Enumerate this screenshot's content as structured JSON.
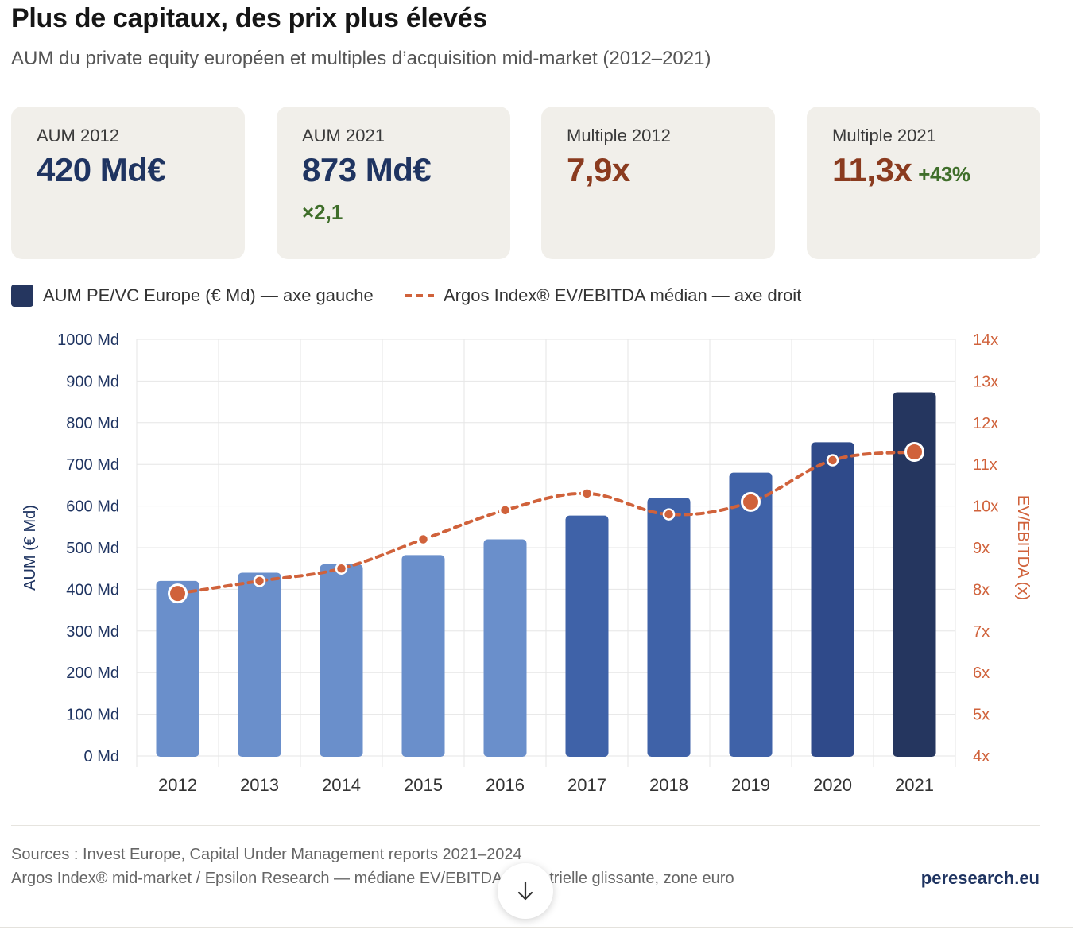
{
  "header": {
    "title": "Plus de capitaux, des prix plus élevés",
    "subtitle": "AUM du private equity européen et multiples d’acquisition mid-market (2012–2021)"
  },
  "cards": [
    {
      "label": "AUM 2012",
      "value": "420 Md€",
      "delta": ""
    },
    {
      "label": "AUM 2021",
      "value": "873 Md€",
      "delta": "×2,1"
    },
    {
      "label": "Multiple 2012",
      "value": "7,9x",
      "delta": ""
    },
    {
      "label": "Multiple 2021",
      "value": "11,3x",
      "delta": "+43%"
    }
  ],
  "legend": {
    "bars": "AUM PE/VC Europe (€ Md) — axe gauche",
    "line": "Argos Index® EV/EBITDA médian — axe droit"
  },
  "chart_data": {
    "type": "bar",
    "title": "Plus de capitaux, des prix plus élevés",
    "categories": [
      "2012",
      "2013",
      "2014",
      "2015",
      "2016",
      "2017",
      "2018",
      "2019",
      "2020",
      "2021"
    ],
    "series": [
      {
        "name": "AUM PE/VC Europe (€ Md) — axe gauche",
        "type": "bar",
        "axis": "left",
        "values": [
          420,
          440,
          460,
          482,
          520,
          577,
          620,
          680,
          753,
          873
        ]
      },
      {
        "name": "Argos Index® EV/EBITDA médian — axe droit",
        "type": "line",
        "axis": "right",
        "values": [
          7.9,
          8.2,
          8.5,
          9.2,
          9.9,
          10.3,
          9.8,
          10.1,
          11.1,
          11.3
        ]
      }
    ],
    "highlight_points": [
      0,
      7,
      9
    ],
    "left_axis": {
      "label": "AUM (€ Md)",
      "min": 0,
      "max": 1000,
      "ticks": [
        "0 Md",
        "100 Md",
        "200 Md",
        "300 Md",
        "400 Md",
        "500 Md",
        "600 Md",
        "700 Md",
        "800 Md",
        "900 Md",
        "1000 Md"
      ]
    },
    "right_axis": {
      "label": "EV/EBITDA (x)",
      "min": 4,
      "max": 14,
      "ticks": [
        "4x",
        "5x",
        "6x",
        "7x",
        "8x",
        "9x",
        "10x",
        "11x",
        "12x",
        "13x",
        "14x"
      ]
    },
    "grid": true,
    "legend_position": "top-left"
  },
  "footer": {
    "source_line1": "Sources : Invest Europe, Capital Under Management reports 2021–2024",
    "source_line2": "Argos Index® mid-market / Epsilon Research — médiane EV/EBITDA trimestrielle glissante, zone euro",
    "brand": "peresearch.eu"
  },
  "colors": {
    "bar_light": "#6a8fcb",
    "bar_mid": "#3f62a8",
    "bar_dark": "#2f4a8a",
    "bar_darkest": "#25365f",
    "line": "#d0623b",
    "navy": "#1f3461",
    "rust": "#8a3b1f",
    "green": "#3f6e2a"
  }
}
